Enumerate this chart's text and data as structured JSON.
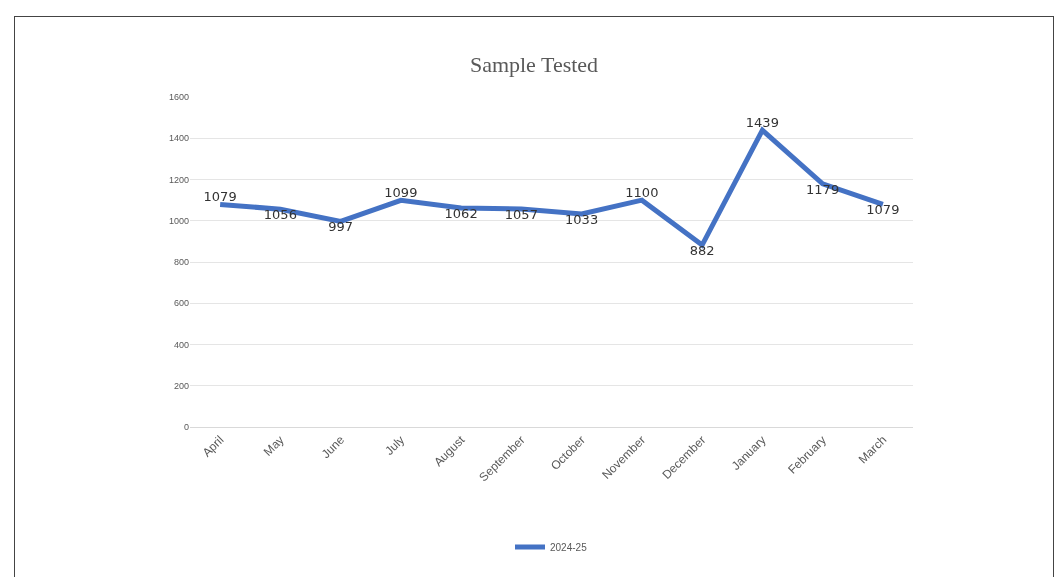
{
  "chart_data": {
    "type": "line",
    "title": "Sample Tested",
    "categories": [
      "April",
      "May",
      "June",
      "July",
      "August",
      "September",
      "October",
      "November",
      "December",
      "January",
      "February",
      "March"
    ],
    "series": [
      {
        "name": "2024-25",
        "color": "#4472c4",
        "values": [
          1079,
          1056,
          997,
          1099,
          1062,
          1057,
          1033,
          1100,
          882,
          1439,
          1179,
          1079
        ]
      }
    ],
    "ylim": [
      0,
      1600
    ],
    "yticks": [
      0,
      200,
      400,
      600,
      800,
      1000,
      1200,
      1400,
      1600
    ],
    "grid": "y",
    "legend": "bottom",
    "marker": "none",
    "line_style": "solid",
    "data_labels": true
  }
}
